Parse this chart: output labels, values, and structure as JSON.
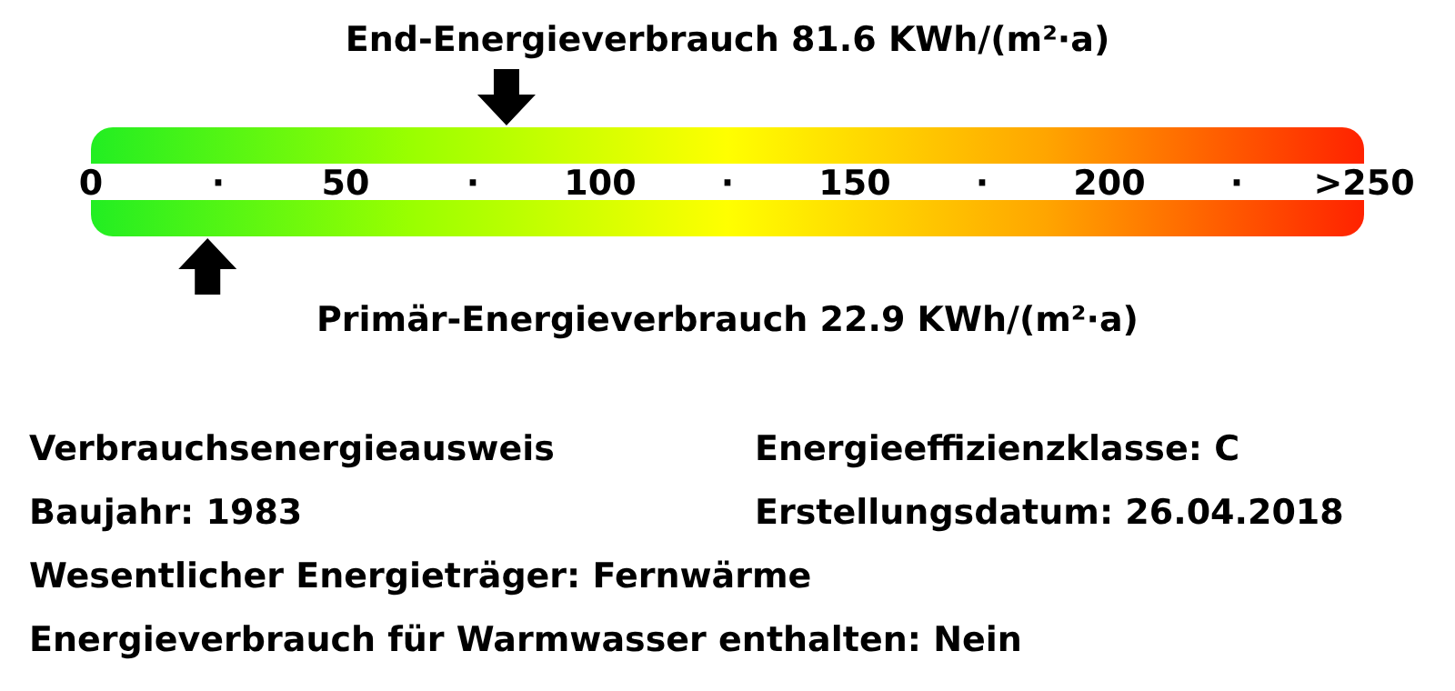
{
  "chart_data": {
    "type": "scatter",
    "orientation": "horizontal",
    "categories": [
      "End-Energieverbrauch 81.6 KWh/(m²·a)",
      "Primär-Energieverbrauch 22.9 KWh/(m²·a)"
    ],
    "values": [
      81.6,
      22.9
    ],
    "xlim": [
      0,
      250
    ],
    "xticks": [
      0,
      {
        "value": 25,
        "label": "·"
      },
      50,
      {
        "value": 75,
        "label": "·"
      },
      100,
      {
        "value": 125,
        "label": "·"
      },
      150,
      {
        "value": 175,
        "label": "·"
      },
      200,
      {
        "value": 225,
        "label": "·"
      },
      {
        "value": 250,
        "label": ">250"
      }
    ],
    "annotations": [
      "Verbrauchsenergieausweis",
      "Energieeffizienzklasse: C",
      "Baujahr: 1983",
      "Erstellungsdatum: 26.04.2018",
      "Wesentlicher Energieträger: Fernwärme",
      "Energieverbrauch für Warmwasser enthalten: Nein"
    ]
  }
}
